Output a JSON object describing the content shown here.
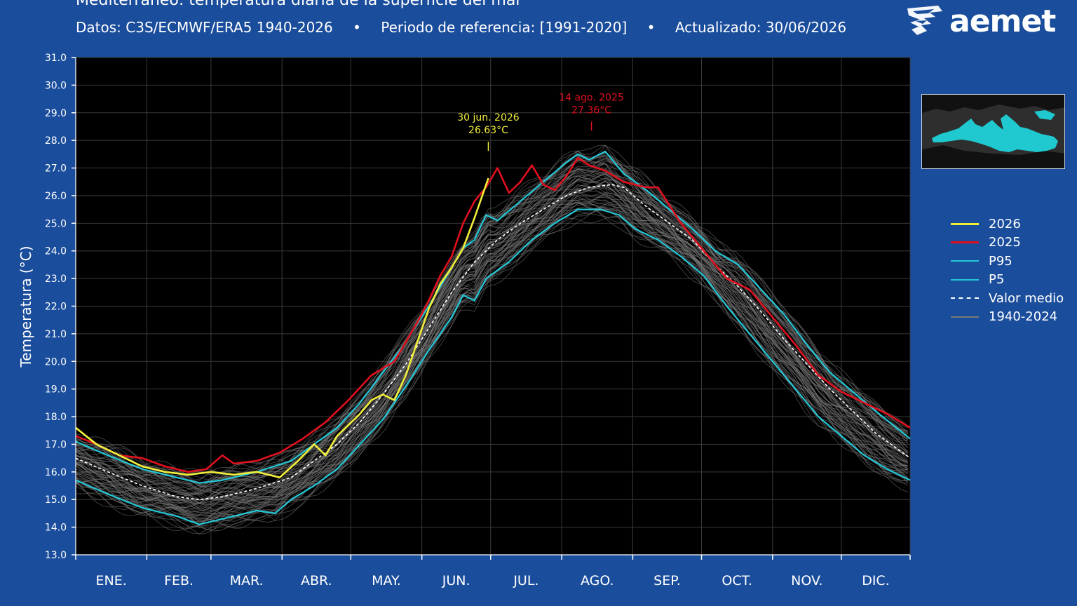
{
  "header": {
    "title": "Mediterráneo: temperatura diaria de la superficie del mar",
    "subtitle_parts": [
      "Datos: C3S/ECMWF/ERA5 1940-2026",
      "Periodo de referencia: [1991-2020]",
      "Actualizado: 30/06/2026"
    ],
    "separator": "•",
    "logo_text": "aemet"
  },
  "colors": {
    "background": "#1a4d9c",
    "plot_bg": "#000000",
    "y2026": "#f2ef3a",
    "y2025": "#e0101e",
    "p95": "#22c7d6",
    "p5": "#22c7d6",
    "mean": "#ffffff",
    "hist": "#7a7a7a",
    "sea": "#1fc9cf"
  },
  "legend": [
    {
      "label": "2026",
      "key": "y2026",
      "style": "solid"
    },
    {
      "label": "2025",
      "key": "y2025",
      "style": "solid"
    },
    {
      "label": "P95",
      "key": "p95",
      "style": "solid"
    },
    {
      "label": "P5",
      "key": "p5",
      "style": "solid"
    },
    {
      "label": "Valor medio",
      "key": "mean",
      "style": "dashed"
    },
    {
      "label": "1940-2024",
      "key": "hist",
      "style": "solid"
    }
  ],
  "chart_data": {
    "type": "line",
    "title": "Mediterráneo: temperatura diaria de la superficie del mar",
    "ylabel": "Temperatura (°C)",
    "xlabel": "",
    "x_unit": "day of year",
    "xlim": [
      1,
      365
    ],
    "ylim": [
      13.0,
      31.0
    ],
    "ytick_step": 1.0,
    "grid": true,
    "legend_position": "right",
    "months": [
      "ENE.",
      "FEB.",
      "MAR.",
      "ABR.",
      "MAY.",
      "JUN.",
      "JUL.",
      "AGO.",
      "SEP.",
      "OCT.",
      "NOV.",
      "DIC."
    ],
    "month_start_days": [
      1,
      32,
      60,
      91,
      121,
      152,
      182,
      213,
      244,
      274,
      305,
      335,
      365
    ],
    "series": [
      {
        "name": "Valor medio",
        "key": "mean",
        "dashed": true,
        "points": [
          [
            1,
            16.5
          ],
          [
            15,
            16.0
          ],
          [
            30,
            15.5
          ],
          [
            45,
            15.1
          ],
          [
            55,
            15.0
          ],
          [
            65,
            15.1
          ],
          [
            80,
            15.4
          ],
          [
            95,
            15.8
          ],
          [
            105,
            16.4
          ],
          [
            115,
            17.0
          ],
          [
            125,
            17.8
          ],
          [
            135,
            18.8
          ],
          [
            145,
            19.9
          ],
          [
            155,
            21.2
          ],
          [
            165,
            22.5
          ],
          [
            175,
            23.6
          ],
          [
            185,
            24.4
          ],
          [
            195,
            25.0
          ],
          [
            205,
            25.5
          ],
          [
            215,
            26.0
          ],
          [
            225,
            26.3
          ],
          [
            235,
            26.4
          ],
          [
            240,
            26.3
          ],
          [
            250,
            25.6
          ],
          [
            260,
            25.0
          ],
          [
            270,
            24.4
          ],
          [
            280,
            23.5
          ],
          [
            290,
            22.7
          ],
          [
            300,
            21.8
          ],
          [
            310,
            20.8
          ],
          [
            320,
            19.9
          ],
          [
            330,
            19.0
          ],
          [
            340,
            18.2
          ],
          [
            350,
            17.4
          ],
          [
            365,
            16.5
          ]
        ]
      },
      {
        "name": "P95",
        "key": "p95",
        "points": [
          [
            1,
            17.1
          ],
          [
            15,
            16.6
          ],
          [
            30,
            16.1
          ],
          [
            45,
            15.8
          ],
          [
            55,
            15.6
          ],
          [
            65,
            15.7
          ],
          [
            80,
            16.0
          ],
          [
            95,
            16.4
          ],
          [
            105,
            17.0
          ],
          [
            115,
            17.6
          ],
          [
            125,
            18.5
          ],
          [
            135,
            19.6
          ],
          [
            145,
            20.7
          ],
          [
            155,
            22.0
          ],
          [
            165,
            23.4
          ],
          [
            170,
            24.1
          ],
          [
            175,
            24.4
          ],
          [
            180,
            25.3
          ],
          [
            185,
            25.1
          ],
          [
            195,
            25.8
          ],
          [
            205,
            26.5
          ],
          [
            215,
            27.2
          ],
          [
            220,
            27.5
          ],
          [
            225,
            27.3
          ],
          [
            232,
            27.6
          ],
          [
            240,
            26.8
          ],
          [
            250,
            26.2
          ],
          [
            260,
            25.5
          ],
          [
            270,
            24.8
          ],
          [
            280,
            24.0
          ],
          [
            290,
            23.5
          ],
          [
            300,
            22.6
          ],
          [
            310,
            21.7
          ],
          [
            320,
            20.6
          ],
          [
            330,
            19.6
          ],
          [
            340,
            18.9
          ],
          [
            350,
            18.2
          ],
          [
            365,
            17.2
          ]
        ]
      },
      {
        "name": "P5",
        "key": "p5",
        "points": [
          [
            1,
            15.7
          ],
          [
            15,
            15.2
          ],
          [
            30,
            14.7
          ],
          [
            45,
            14.4
          ],
          [
            55,
            14.1
          ],
          [
            65,
            14.3
          ],
          [
            80,
            14.6
          ],
          [
            88,
            14.5
          ],
          [
            95,
            15.0
          ],
          [
            105,
            15.5
          ],
          [
            115,
            16.1
          ],
          [
            125,
            17.0
          ],
          [
            135,
            17.9
          ],
          [
            145,
            19.1
          ],
          [
            155,
            20.4
          ],
          [
            165,
            21.6
          ],
          [
            170,
            22.4
          ],
          [
            175,
            22.2
          ],
          [
            180,
            23.0
          ],
          [
            190,
            23.6
          ],
          [
            200,
            24.4
          ],
          [
            210,
            25.0
          ],
          [
            220,
            25.5
          ],
          [
            230,
            25.5
          ],
          [
            238,
            25.3
          ],
          [
            245,
            24.8
          ],
          [
            255,
            24.4
          ],
          [
            265,
            23.8
          ],
          [
            275,
            23.1
          ],
          [
            285,
            22.0
          ],
          [
            295,
            21.0
          ],
          [
            305,
            20.0
          ],
          [
            315,
            19.0
          ],
          [
            325,
            18.0
          ],
          [
            335,
            17.3
          ],
          [
            345,
            16.6
          ],
          [
            355,
            16.1
          ],
          [
            365,
            15.7
          ]
        ]
      },
      {
        "name": "2025",
        "key": "y2025",
        "points": [
          [
            1,
            17.3
          ],
          [
            10,
            17.0
          ],
          [
            20,
            16.6
          ],
          [
            30,
            16.5
          ],
          [
            40,
            16.2
          ],
          [
            50,
            16.0
          ],
          [
            58,
            16.1
          ],
          [
            65,
            16.6
          ],
          [
            70,
            16.3
          ],
          [
            80,
            16.4
          ],
          [
            90,
            16.7
          ],
          [
            100,
            17.2
          ],
          [
            110,
            17.8
          ],
          [
            120,
            18.6
          ],
          [
            130,
            19.5
          ],
          [
            140,
            20.0
          ],
          [
            150,
            21.4
          ],
          [
            155,
            22.2
          ],
          [
            160,
            23.1
          ],
          [
            165,
            23.8
          ],
          [
            170,
            25.0
          ],
          [
            175,
            25.8
          ],
          [
            180,
            26.3
          ],
          [
            185,
            27.0
          ],
          [
            190,
            26.1
          ],
          [
            195,
            26.5
          ],
          [
            200,
            27.1
          ],
          [
            205,
            26.4
          ],
          [
            210,
            26.2
          ],
          [
            215,
            26.7
          ],
          [
            220,
            27.36
          ],
          [
            225,
            27.1
          ],
          [
            232,
            26.9
          ],
          [
            240,
            26.5
          ],
          [
            250,
            26.3
          ],
          [
            255,
            26.3
          ],
          [
            265,
            25.0
          ],
          [
            275,
            24.0
          ],
          [
            285,
            23.0
          ],
          [
            295,
            22.6
          ],
          [
            305,
            21.6
          ],
          [
            315,
            20.6
          ],
          [
            325,
            19.5
          ],
          [
            335,
            18.9
          ],
          [
            345,
            18.5
          ],
          [
            355,
            18.1
          ],
          [
            365,
            17.6
          ]
        ]
      },
      {
        "name": "2026",
        "key": "y2026",
        "points": [
          [
            1,
            17.6
          ],
          [
            10,
            17.0
          ],
          [
            20,
            16.6
          ],
          [
            30,
            16.2
          ],
          [
            40,
            16.0
          ],
          [
            50,
            15.9
          ],
          [
            60,
            16.0
          ],
          [
            70,
            15.9
          ],
          [
            80,
            16.0
          ],
          [
            90,
            15.8
          ],
          [
            98,
            16.4
          ],
          [
            105,
            17.0
          ],
          [
            110,
            16.6
          ],
          [
            115,
            17.3
          ],
          [
            125,
            18.1
          ],
          [
            130,
            18.6
          ],
          [
            135,
            18.8
          ],
          [
            140,
            18.6
          ],
          [
            145,
            19.5
          ],
          [
            150,
            20.7
          ],
          [
            155,
            21.9
          ],
          [
            160,
            22.8
          ],
          [
            165,
            23.4
          ],
          [
            170,
            24.1
          ],
          [
            175,
            25.2
          ],
          [
            181,
            26.63
          ]
        ]
      }
    ],
    "annotations": [
      {
        "text_line1": "30 jun. 2026",
        "text_line2": "26.63°C",
        "x": 181,
        "y": 26.63,
        "key": "y2026"
      },
      {
        "text_line1": "14 ago. 2025",
        "text_line2": "27.36°C",
        "x": 226,
        "y": 27.36,
        "key": "y2025"
      }
    ]
  }
}
